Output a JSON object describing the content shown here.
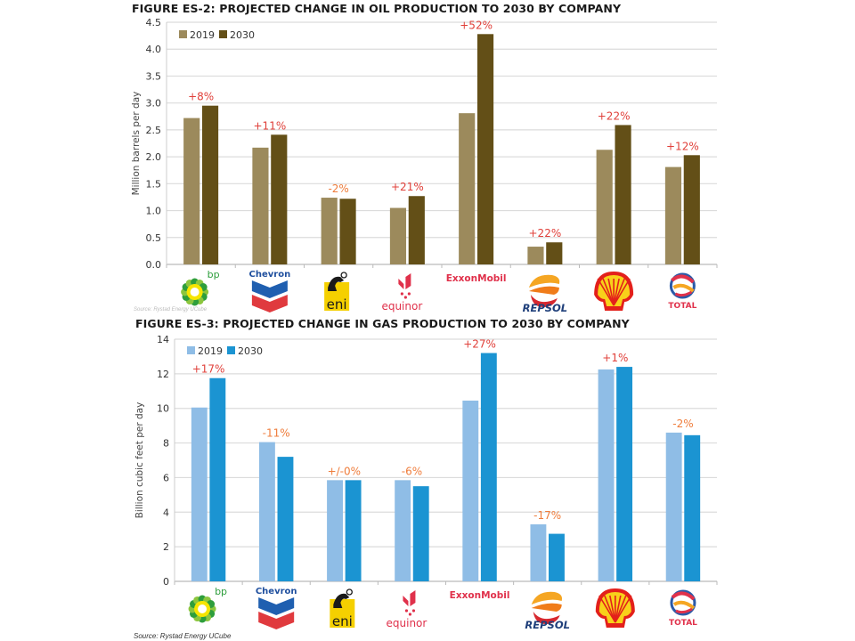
{
  "chart_data": [
    {
      "type": "bar",
      "title": "FIGURE ES-2: PROJECTED CHANGE IN OIL PRODUCTION TO 2030 BY COMPANY",
      "xlabel": "",
      "ylabel": "Million barrels per day",
      "ylim": [
        0,
        4.5
      ],
      "yticks": [
        "0.0",
        "0.5",
        "1.0",
        "1.5",
        "2.0",
        "2.5",
        "3.0",
        "3.5",
        "4.0",
        "4.5"
      ],
      "ytick_values": [
        0,
        0.5,
        1.0,
        1.5,
        2.0,
        2.5,
        3.0,
        3.5,
        4.0,
        4.5
      ],
      "grid": true,
      "legend": "top-left",
      "categories": [
        "bp",
        "Chevron",
        "eni",
        "Equinor",
        "ExxonMobil",
        "Repsol",
        "Shell",
        "Total"
      ],
      "series": [
        {
          "name": "2019",
          "color": "#9c8a5c",
          "values": [
            2.72,
            2.17,
            1.24,
            1.05,
            2.81,
            0.33,
            2.13,
            1.81
          ]
        },
        {
          "name": "2030",
          "color": "#634f17",
          "values": [
            2.95,
            2.41,
            1.22,
            1.27,
            4.28,
            0.41,
            2.59,
            2.03
          ]
        }
      ],
      "annotations": [
        "+8%",
        "+11%",
        "-2%",
        "+21%",
        "+52%",
        "+22%",
        "+22%",
        "+12%"
      ],
      "annotation_colors": [
        "#e0403a",
        "#e0403a",
        "#ef7d3c",
        "#e0403a",
        "#e0403a",
        "#e0403a",
        "#e0403a",
        "#e0403a"
      ]
    },
    {
      "type": "bar",
      "title": "FIGURE ES-3: PROJECTED CHANGE IN GAS PRODUCTION TO 2030 BY COMPANY",
      "xlabel": "",
      "ylabel": "Billion cubic feet per day",
      "ylim": [
        0,
        14
      ],
      "yticks": [
        "0",
        "2",
        "4",
        "6",
        "8",
        "10",
        "12",
        "14"
      ],
      "ytick_values": [
        0,
        2,
        4,
        6,
        8,
        10,
        12,
        14
      ],
      "grid": true,
      "legend": "top-left",
      "categories": [
        "bp",
        "Chevron",
        "eni",
        "Equinor",
        "ExxonMobil",
        "Repsol",
        "Shell",
        "Total"
      ],
      "series": [
        {
          "name": "2019",
          "color": "#8fbde6",
          "values": [
            10.05,
            8.05,
            5.85,
            5.85,
            10.45,
            3.3,
            12.25,
            8.6
          ]
        },
        {
          "name": "2030",
          "color": "#1b94d2",
          "values": [
            11.75,
            7.2,
            5.85,
            5.5,
            13.2,
            2.75,
            12.4,
            8.45
          ]
        }
      ],
      "annotations": [
        "+17%",
        "-11%",
        "+/-0%",
        "-6%",
        "+27%",
        "-17%",
        "+1%",
        "-2%"
      ],
      "annotation_colors": [
        "#e0403a",
        "#ef7d3c",
        "#ef7d3c",
        "#ef7d3c",
        "#e0403a",
        "#ef7d3c",
        "#e0403a",
        "#ef7d3c"
      ]
    }
  ],
  "logos": [
    {
      "name": "bp",
      "text": "bp",
      "color": "#2e9e3c"
    },
    {
      "name": "chevron",
      "text": "Chevron",
      "color": "#1f4f9e"
    },
    {
      "name": "eni",
      "text": "eni",
      "color": "#1a1a1a"
    },
    {
      "name": "equinor",
      "text": "equinor",
      "color": "#e0314b"
    },
    {
      "name": "exxonmobil",
      "text": "ExxonMobil",
      "color": "#e0314b"
    },
    {
      "name": "repsol",
      "text": "REPSOL",
      "color": "#1f3f7a"
    },
    {
      "name": "shell",
      "text": "",
      "color": "#e3201b"
    },
    {
      "name": "total",
      "text": "TOTAL",
      "color": "#e0314b"
    }
  ],
  "source_top": "Source: Rystad Energy UCube",
  "source_bottom": "Source: Rystad Energy UCube"
}
